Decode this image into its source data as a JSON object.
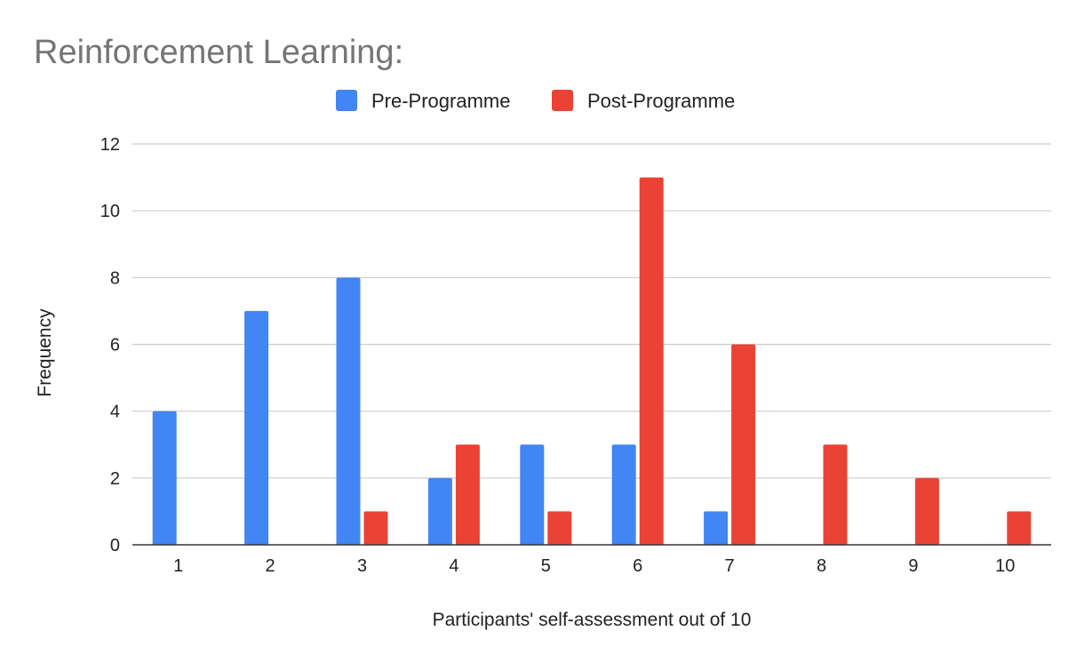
{
  "chart_data": {
    "type": "bar",
    "title": "Reinforcement Learning:",
    "xlabel": "Participants' self-assessment out of 10",
    "ylabel": "Frequency",
    "categories": [
      "1",
      "2",
      "3",
      "4",
      "5",
      "6",
      "7",
      "8",
      "9",
      "10"
    ],
    "series": [
      {
        "name": "Pre-Programme",
        "color": "#4285f4",
        "values": [
          4,
          7,
          8,
          2,
          3,
          3,
          1,
          0,
          0,
          0
        ]
      },
      {
        "name": "Post-Programme",
        "color": "#ea4335",
        "values": [
          0,
          0,
          1,
          3,
          1,
          11,
          6,
          3,
          2,
          1
        ]
      }
    ],
    "ylim": [
      0,
      12
    ],
    "yticks": [
      0,
      2,
      4,
      6,
      8,
      10,
      12
    ],
    "grid": true,
    "legend_position": "top-center"
  }
}
